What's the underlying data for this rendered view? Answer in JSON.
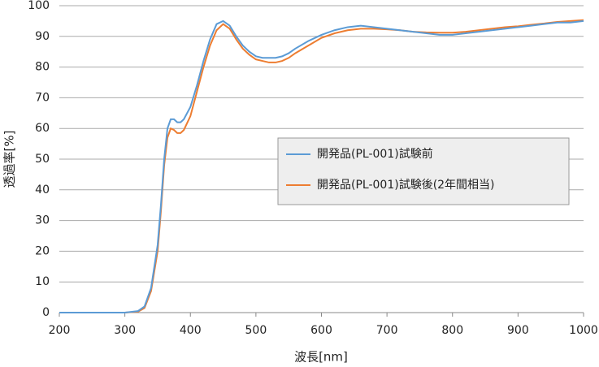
{
  "chart_data": {
    "type": "line",
    "x_label": "波長[nm]",
    "y_label": "透過率[%]",
    "x": [
      200,
      250,
      300,
      320,
      330,
      340,
      350,
      355,
      360,
      365,
      370,
      375,
      380,
      385,
      390,
      400,
      410,
      420,
      430,
      440,
      450,
      460,
      470,
      480,
      490,
      500,
      510,
      520,
      530,
      540,
      550,
      560,
      580,
      600,
      620,
      640,
      660,
      680,
      700,
      720,
      740,
      760,
      780,
      800,
      820,
      840,
      860,
      880,
      900,
      920,
      940,
      960,
      980,
      1000
    ],
    "series": [
      {
        "name": "開発品(PL-001)試験前",
        "color": "#5b9bd5",
        "values": [
          0,
          0,
          0,
          0.5,
          2,
          8,
          22,
          35,
          50,
          60,
          63,
          63,
          62,
          62,
          63,
          67,
          74,
          82,
          89,
          94,
          95,
          93.5,
          90,
          87,
          85,
          83.5,
          83,
          83,
          83,
          83.5,
          84.5,
          86,
          88.5,
          90.5,
          92,
          93,
          93.5,
          93,
          92.5,
          92,
          91.5,
          91,
          90.5,
          90.5,
          91,
          91.5,
          92,
          92.5,
          93,
          93.5,
          94,
          94.5,
          94.5,
          95
        ]
      },
      {
        "name": "開発品(PL-001)試験後(2年間相当)",
        "color": "#ed7d31",
        "values": [
          0,
          0,
          0,
          0.3,
          1.5,
          7,
          20,
          33,
          48,
          57,
          60,
          59.5,
          58.5,
          58.5,
          59.5,
          64,
          72,
          80,
          87,
          92,
          94,
          92.5,
          89,
          86,
          84,
          82.5,
          82,
          81.5,
          81.5,
          82,
          83,
          84.5,
          87,
          89.5,
          91,
          92,
          92.5,
          92.5,
          92.3,
          92,
          91.5,
          91.3,
          91.2,
          91.2,
          91.5,
          92,
          92.5,
          93,
          93.3,
          93.8,
          94.2,
          94.7,
          95,
          95.3
        ]
      }
    ],
    "xlim": [
      200,
      1000
    ],
    "ylim": [
      0,
      100
    ],
    "xticks": [
      200,
      300,
      400,
      500,
      600,
      700,
      800,
      900,
      1000
    ],
    "yticks": [
      0,
      10,
      20,
      30,
      40,
      50,
      60,
      70,
      80,
      90,
      100
    ],
    "grid": true
  }
}
